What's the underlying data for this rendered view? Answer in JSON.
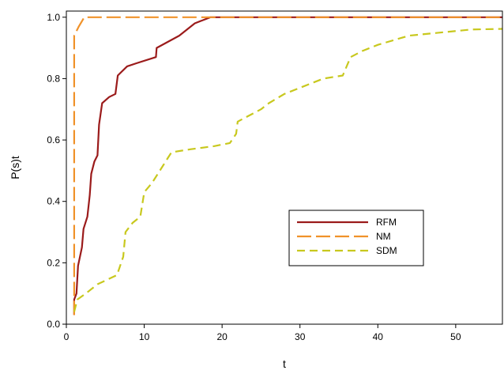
{
  "chart_data": {
    "type": "line",
    "xlabel": "t",
    "ylabel": "P(s)t",
    "xlim": [
      0,
      56
    ],
    "ylim": [
      0,
      1.02
    ],
    "x_ticks": [
      0,
      10,
      20,
      30,
      40,
      50
    ],
    "y_ticks": [
      0.0,
      0.2,
      0.4,
      0.6,
      0.8,
      1.0
    ],
    "x_tick_labels": [
      "0",
      "10",
      "20",
      "30",
      "40",
      "50"
    ],
    "y_tick_labels": [
      "0.0",
      "0.2",
      "0.4",
      "0.6",
      "0.8",
      "1.0"
    ],
    "grid": false,
    "legend_position": "lower-right",
    "series": [
      {
        "name": "RFM",
        "color": "#9b1b1b",
        "dash": "solid",
        "points": [
          [
            1,
            0.03
          ],
          [
            1,
            0.08
          ],
          [
            1.3,
            0.1
          ],
          [
            1.5,
            0.19
          ],
          [
            2,
            0.25
          ],
          [
            2.2,
            0.31
          ],
          [
            2.7,
            0.35
          ],
          [
            3,
            0.42
          ],
          [
            3.2,
            0.49
          ],
          [
            3.6,
            0.53
          ],
          [
            4,
            0.55
          ],
          [
            4.2,
            0.65
          ],
          [
            4.6,
            0.72
          ],
          [
            5.5,
            0.74
          ],
          [
            6.3,
            0.75
          ],
          [
            6.6,
            0.81
          ],
          [
            7,
            0.82
          ],
          [
            7.8,
            0.84
          ],
          [
            9,
            0.85
          ],
          [
            11.5,
            0.87
          ],
          [
            11.6,
            0.9
          ],
          [
            14.5,
            0.94
          ],
          [
            16.5,
            0.98
          ],
          [
            18.5,
            1.0
          ],
          [
            56,
            1.0
          ]
        ]
      },
      {
        "name": "NM",
        "color": "#f0922a",
        "dash": "long",
        "points": [
          [
            1,
            0.03
          ],
          [
            1,
            0.94
          ],
          [
            1.6,
            0.97
          ],
          [
            2.3,
            1.0
          ],
          [
            56,
            1.0
          ]
        ]
      },
      {
        "name": "SDM",
        "color": "#c8c81e",
        "dash": "medium",
        "points": [
          [
            1,
            0.04
          ],
          [
            1.4,
            0.08
          ],
          [
            2.5,
            0.1
          ],
          [
            4,
            0.13
          ],
          [
            6.5,
            0.16
          ],
          [
            7.3,
            0.22
          ],
          [
            7.6,
            0.3
          ],
          [
            8.5,
            0.33
          ],
          [
            9.5,
            0.35
          ],
          [
            10,
            0.43
          ],
          [
            11,
            0.46
          ],
          [
            12,
            0.5
          ],
          [
            13,
            0.54
          ],
          [
            13.5,
            0.56
          ],
          [
            16,
            0.57
          ],
          [
            19,
            0.58
          ],
          [
            21,
            0.59
          ],
          [
            21.8,
            0.62
          ],
          [
            22,
            0.66
          ],
          [
            25,
            0.7
          ],
          [
            26,
            0.72
          ],
          [
            28,
            0.75
          ],
          [
            33,
            0.8
          ],
          [
            35.5,
            0.81
          ],
          [
            36.5,
            0.87
          ],
          [
            38,
            0.89
          ],
          [
            40,
            0.91
          ],
          [
            44,
            0.94
          ],
          [
            48,
            0.95
          ],
          [
            52,
            0.96
          ],
          [
            56,
            0.962
          ]
        ]
      }
    ]
  }
}
